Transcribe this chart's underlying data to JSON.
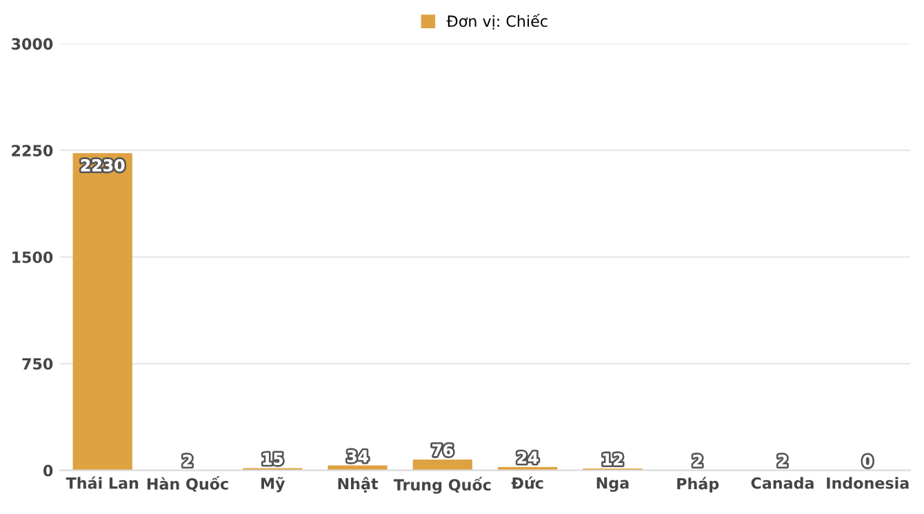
{
  "chart_data": {
    "type": "bar",
    "categories": [
      "Thái Lan",
      "Hàn Quốc",
      "Mỹ",
      "Nhật",
      "Trung Quốc",
      "Đức",
      "Nga",
      "Pháp",
      "Canada",
      "Indonesia"
    ],
    "series": [
      {
        "name": "Đơn vị: Chiếc",
        "color": "#dfa242",
        "values": [
          2230,
          2,
          15,
          34,
          76,
          24,
          12,
          2,
          2,
          0
        ]
      }
    ],
    "ylim": [
      0,
      3000
    ],
    "yticks": [
      0,
      750,
      1500,
      2250,
      3000
    ],
    "grid": "y",
    "legend": "top",
    "data_labels": true
  }
}
